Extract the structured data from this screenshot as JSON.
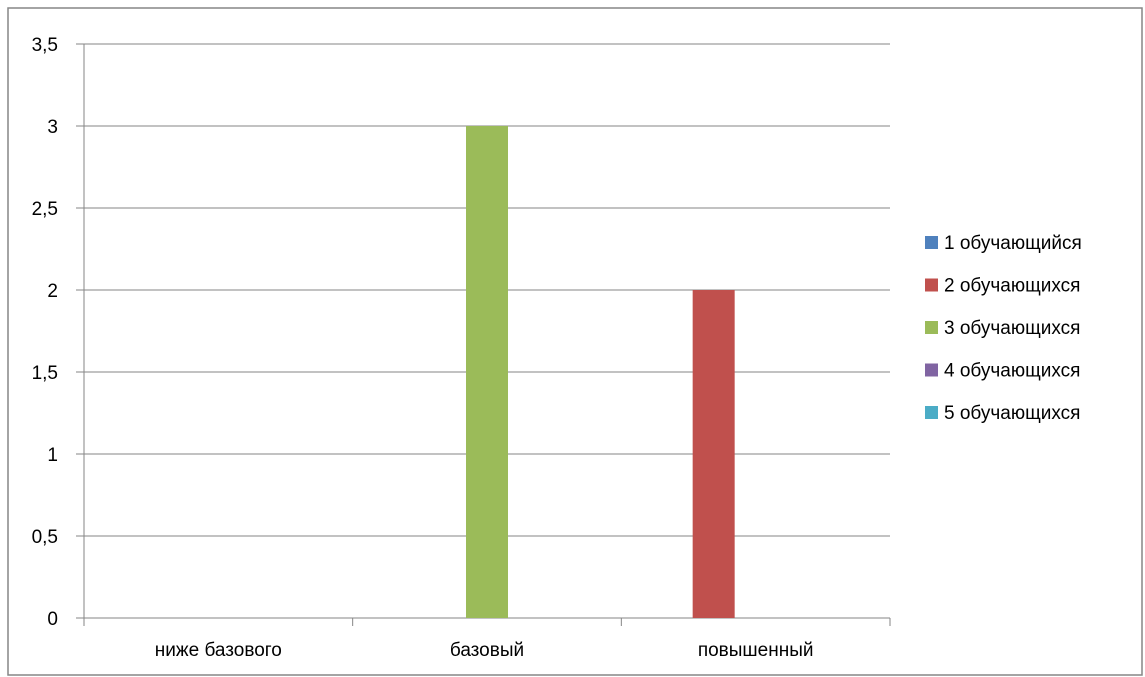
{
  "chart_data": {
    "type": "bar",
    "categories": [
      "ниже базового",
      "базовый",
      "повышенный"
    ],
    "series": [
      {
        "name": "1 обучающийся",
        "color": "#4F81BD",
        "values": [
          0,
          0,
          0
        ]
      },
      {
        "name": "2 обучающихся",
        "color": "#C0504D",
        "values": [
          0,
          0,
          2
        ]
      },
      {
        "name": "3 обучающихся",
        "color": "#9BBB59",
        "values": [
          0,
          3,
          0
        ]
      },
      {
        "name": "4 обучающихся",
        "color": "#8064A2",
        "values": [
          0,
          0,
          0
        ]
      },
      {
        "name": "5 обучающихся",
        "color": "#4BACC6",
        "values": [
          0,
          0,
          0
        ]
      }
    ],
    "ylim": [
      0,
      3.5
    ],
    "y_ticks": [
      "0",
      "0,5",
      "1",
      "1,5",
      "2",
      "2,5",
      "3",
      "3,5"
    ],
    "grid": true,
    "legend_position": "right",
    "title": "",
    "xlabel": "",
    "ylabel": ""
  }
}
